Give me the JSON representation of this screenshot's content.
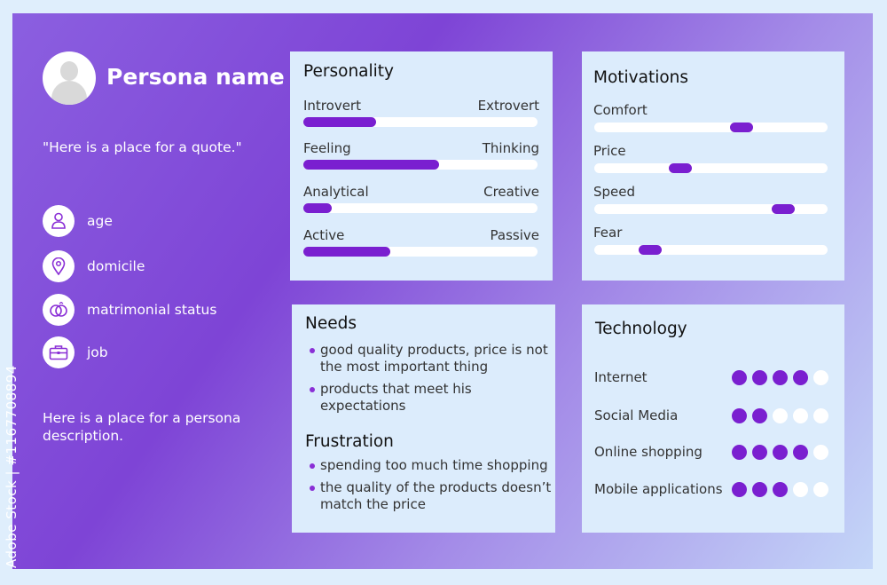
{
  "persona": {
    "name": "Persona name",
    "quote": "\"Here is a place for a quote.\"",
    "info": [
      {
        "icon": "person-icon",
        "label": "age"
      },
      {
        "icon": "location-pin-icon",
        "label": "domicile"
      },
      {
        "icon": "rings-icon",
        "label": "matrimonial status"
      },
      {
        "icon": "briefcase-icon",
        "label": "job"
      }
    ],
    "description": "Here is a place for a persona description."
  },
  "personality": {
    "title": "Personality",
    "traits": [
      {
        "left": "Introvert",
        "right": "Extrovert",
        "value": 0.31
      },
      {
        "left": "Feeling",
        "right": "Thinking",
        "value": 0.58
      },
      {
        "left": "Analytical",
        "right": "Creative",
        "value": 0.12
      },
      {
        "left": "Active",
        "right": "Passive",
        "value": 0.37
      }
    ]
  },
  "motivations": {
    "title": "Motivations",
    "items": [
      {
        "label": "Comfort",
        "value": 0.63
      },
      {
        "label": "Price",
        "value": 0.37
      },
      {
        "label": "Speed",
        "value": 0.81
      },
      {
        "label": "Fear",
        "value": 0.24
      }
    ]
  },
  "needs": {
    "title": "Needs",
    "items": [
      "good quality products, price is not the most important thing",
      "products that meet his expectations"
    ]
  },
  "frustration": {
    "title": "Frustration",
    "items": [
      "spending too much time shopping",
      "the quality of the products doesn’t match the price"
    ]
  },
  "technology": {
    "title": "Technology",
    "max": 5,
    "items": [
      {
        "label": "Internet",
        "rating": 4
      },
      {
        "label": "Social Media",
        "rating": 2
      },
      {
        "label": "Online shopping",
        "rating": 4
      },
      {
        "label": "Mobile applications",
        "rating": 3
      }
    ]
  },
  "watermark": "Adobe Stock | #1167708894",
  "colors": {
    "accent": "#7a1fd0",
    "card": "#dcecfc"
  }
}
